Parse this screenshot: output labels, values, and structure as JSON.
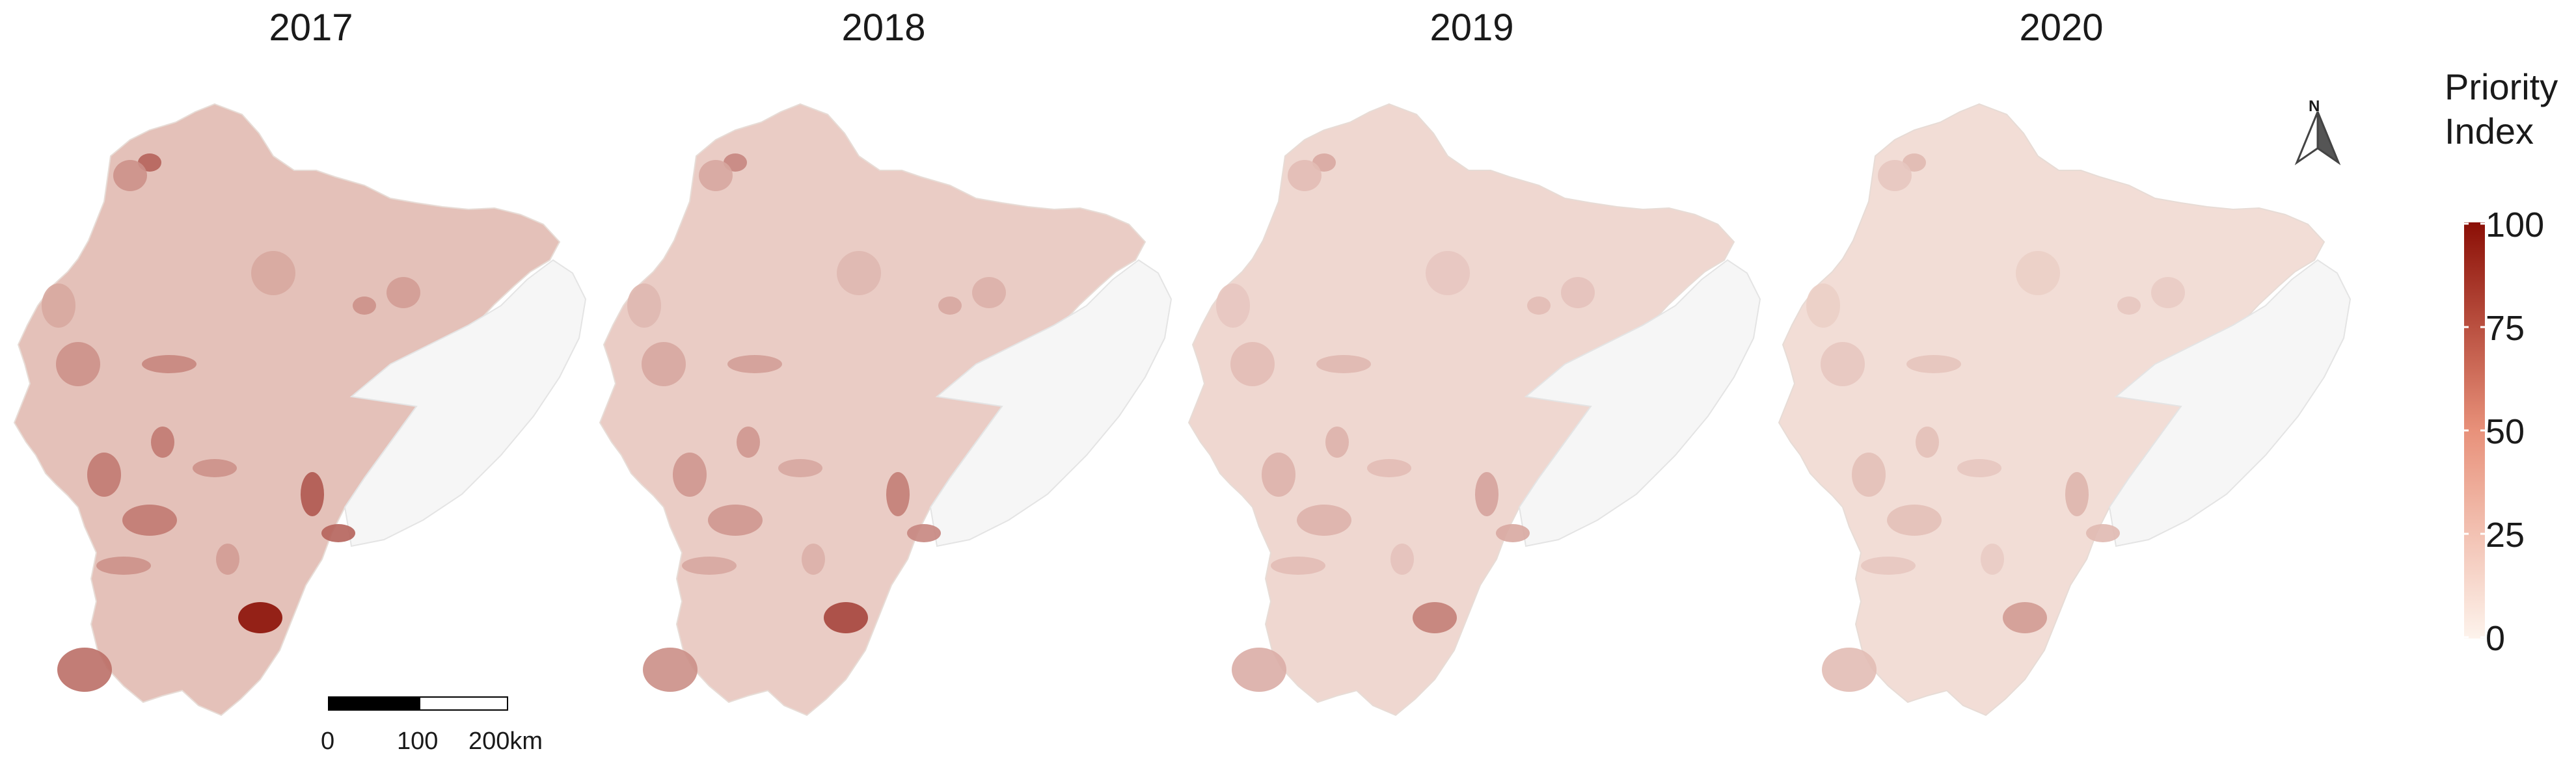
{
  "panels": [
    {
      "year": "2017",
      "intensity": 1.0
    },
    {
      "year": "2018",
      "intensity": 0.72
    },
    {
      "year": "2019",
      "intensity": 0.45
    },
    {
      "year": "2020",
      "intensity": 0.32
    }
  ],
  "legend": {
    "title_line1": "Priority",
    "title_line2": "Index",
    "ticks": [
      "100",
      "75",
      "50",
      "25",
      "0"
    ],
    "range": [
      0,
      100
    ],
    "color_low": "#fdf3ec",
    "color_mid": "#e8917a",
    "color_high": "#8b0f06"
  },
  "scale_bar": {
    "labels": [
      "0",
      "100",
      "200km"
    ]
  },
  "north_arrow": {
    "label": "N",
    "icon": "north-arrow-icon"
  },
  "colors": {
    "no_data": "#f6f6f6",
    "border": "#e7dcd6"
  }
}
